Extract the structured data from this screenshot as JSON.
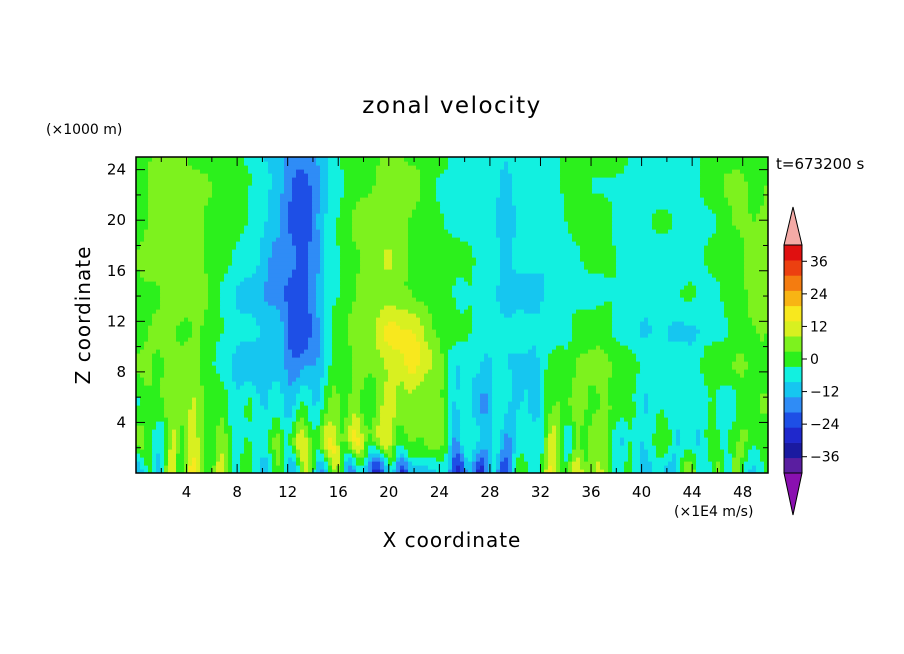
{
  "chart_data": {
    "type": "heatmap",
    "title": "zonal velocity",
    "xlabel": "X coordinate",
    "ylabel": "Z coordinate",
    "y_unit": "(×1000 m)",
    "time_label": "t=673200 s",
    "colorbar_unit": "(×1E4 m/s)",
    "xlim": [
      0,
      50
    ],
    "ylim": [
      0,
      25
    ],
    "x_ticks": [
      4,
      8,
      12,
      16,
      20,
      24,
      28,
      32,
      36,
      40,
      44,
      48
    ],
    "x_tick_labels": [
      "4",
      "8",
      "12",
      "16",
      "20",
      "24",
      "28",
      "32",
      "36",
      "40",
      "44",
      "48"
    ],
    "y_ticks": [
      4,
      8,
      12,
      16,
      20,
      24
    ],
    "y_tick_labels": [
      "4",
      "8",
      "12",
      "16",
      "20",
      "24"
    ],
    "colorbar": {
      "levels": [
        -42,
        -36,
        -30,
        -24,
        -18,
        -12,
        -6,
        0,
        6,
        12,
        18,
        24,
        30,
        36,
        42
      ],
      "colors": [
        "#5a1ea0",
        "#1a1aa0",
        "#1f28cc",
        "#1e4fe6",
        "#2f8cf6",
        "#16c6f0",
        "#12f0e0",
        "#2cf01c",
        "#7df21e",
        "#d8f020",
        "#f8e81e",
        "#f8b414",
        "#f47c10",
        "#ec4010",
        "#e01010"
      ],
      "under_color": "#8a10b0",
      "over_color": "#f4aaa6",
      "tick_values": [
        36,
        24,
        12,
        0,
        -12,
        -24,
        -36
      ],
      "tick_labels": [
        "36",
        "24",
        "12",
        "0",
        "−12",
        "−24",
        "−36"
      ]
    }
  }
}
